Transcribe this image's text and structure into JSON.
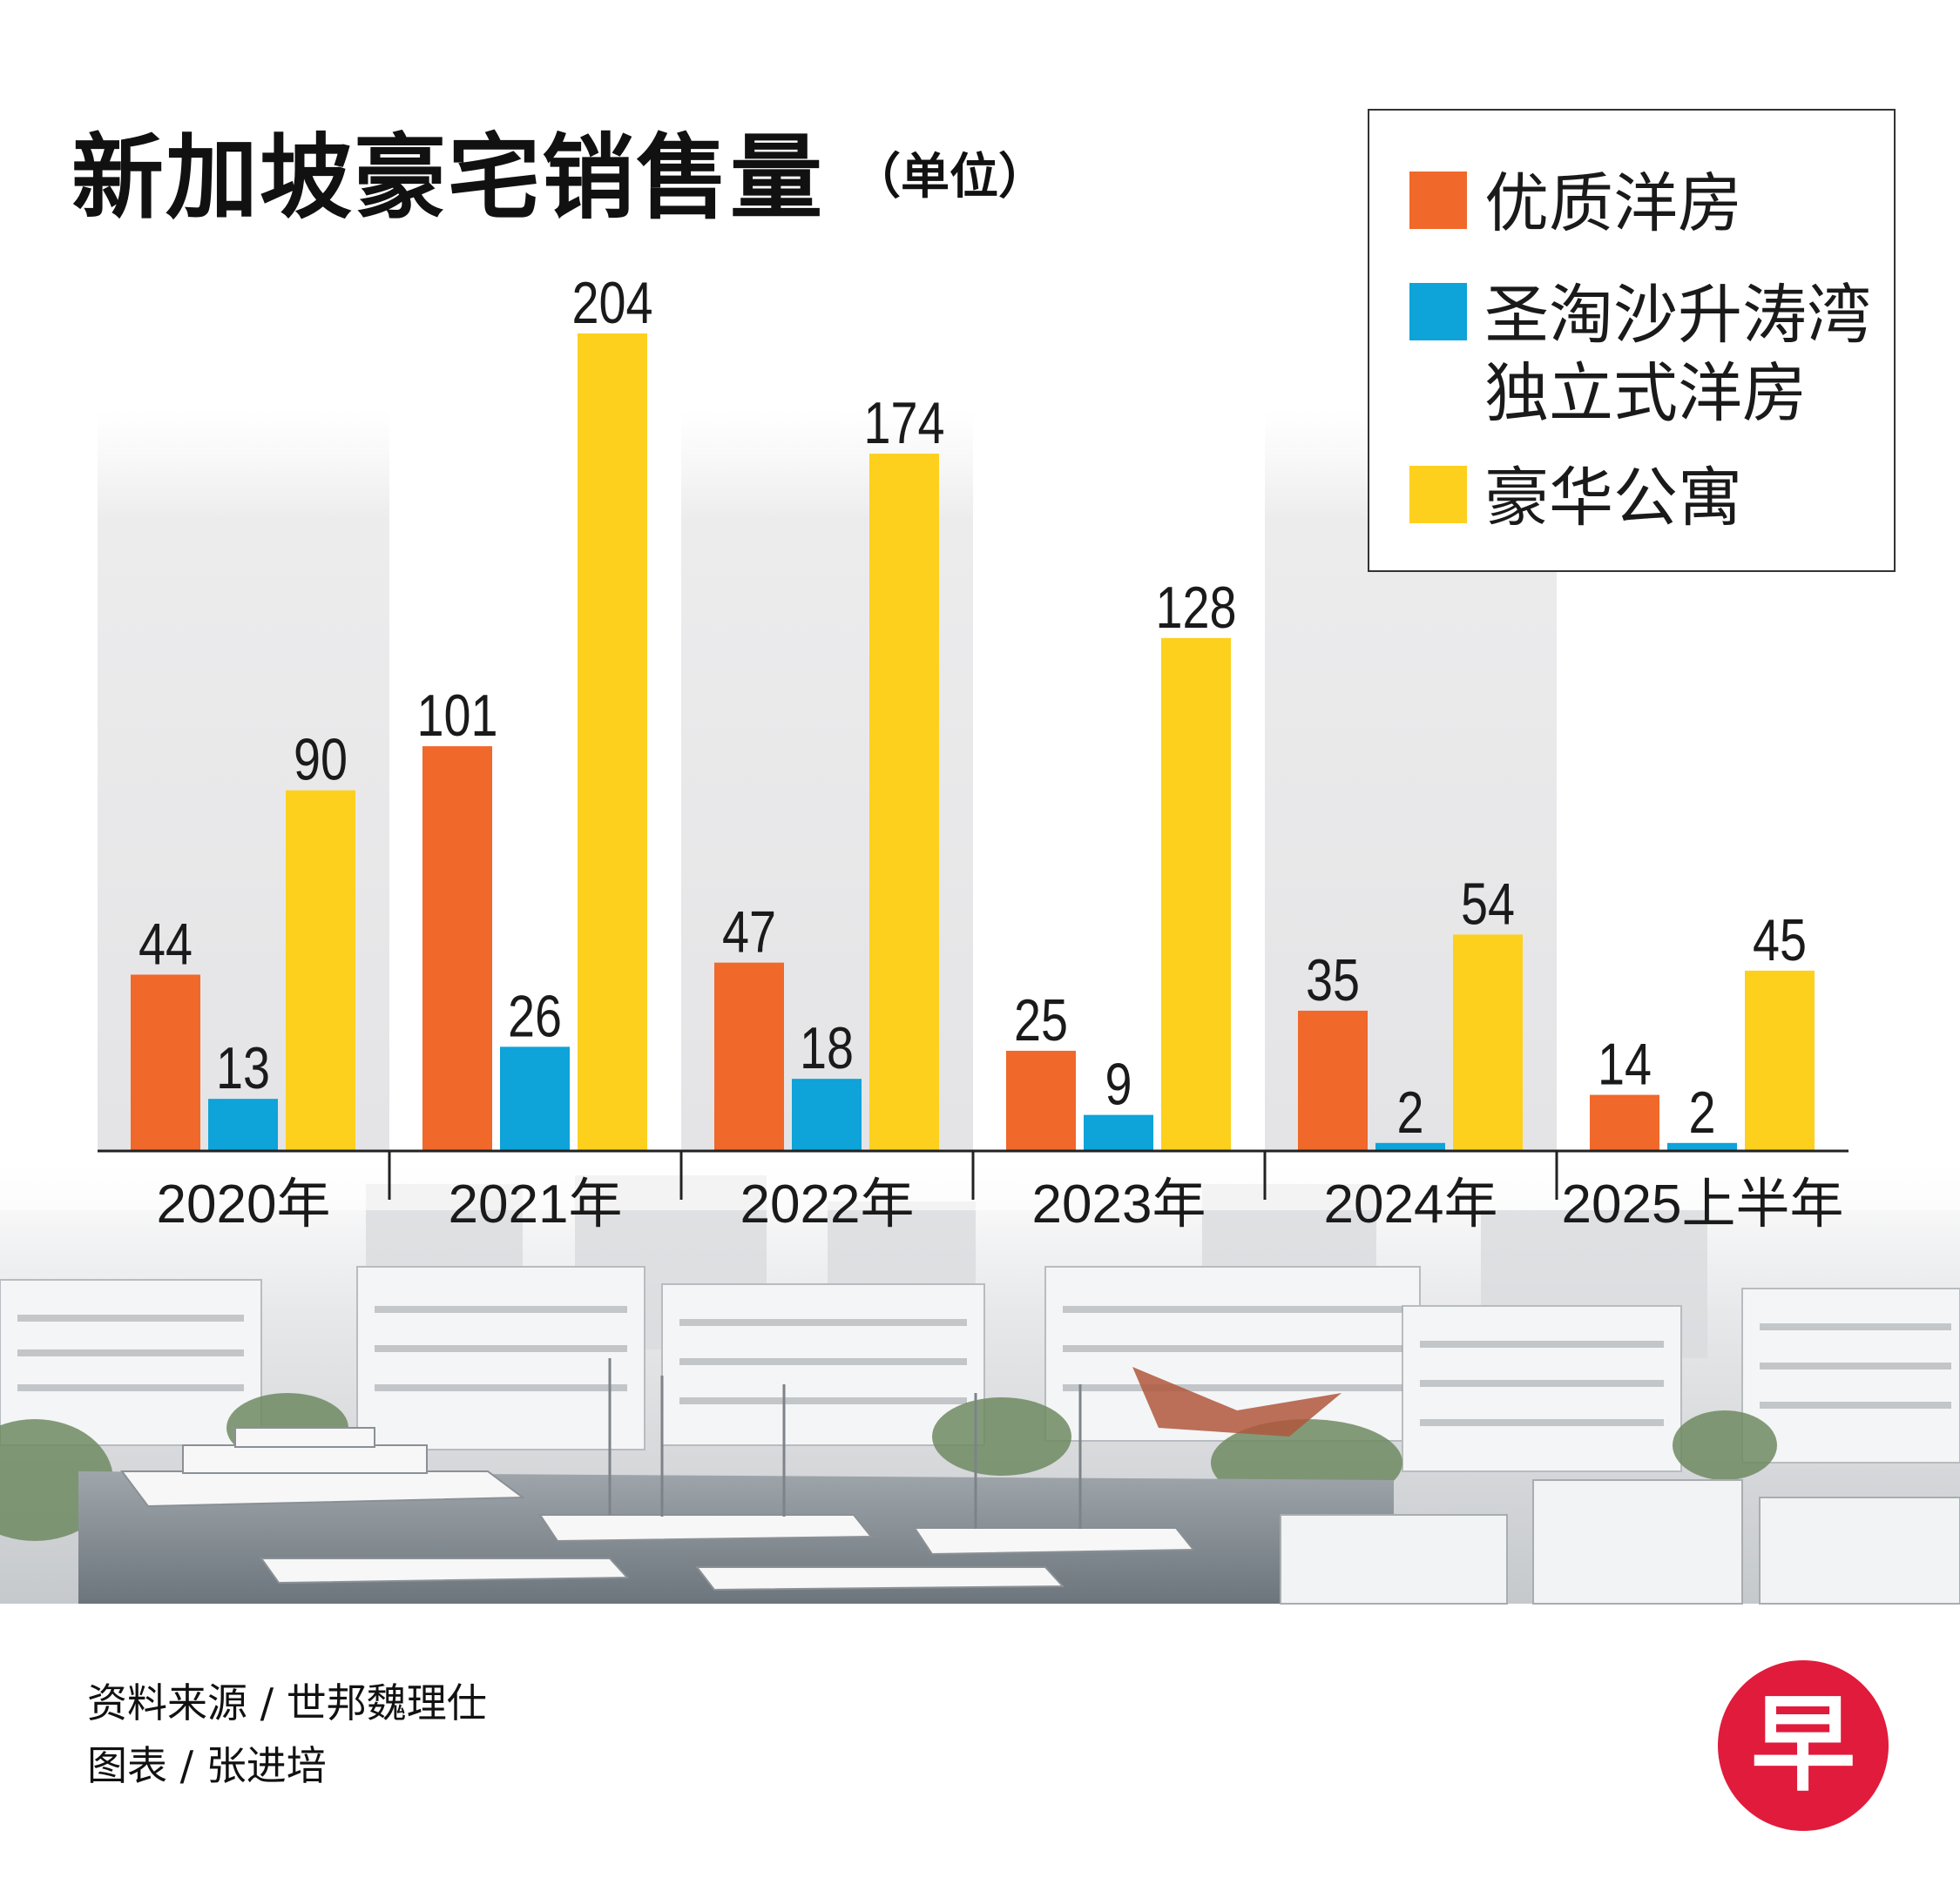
{
  "title": "新加坡豪宅销售量",
  "unit_label": "（单位）",
  "source": "资料来源 / 世邦魏理仕",
  "chart_by": "图表 / 张进培",
  "logo_text": "早",
  "colors": {
    "orange": "#f0682a",
    "blue": "#0ea3d9",
    "yellow": "#fdd01e",
    "logo_red": "#e11b3c"
  },
  "chart_data": {
    "type": "bar",
    "title": "新加坡豪宅销售量",
    "unit": "（单位）",
    "categories": [
      "2020年",
      "2021年",
      "2022年",
      "2023年",
      "2024年",
      "2025上半年"
    ],
    "series": [
      {
        "name": "优质洋房",
        "color": "#f0682a",
        "values": [
          44,
          101,
          47,
          25,
          35,
          14
        ]
      },
      {
        "name": "圣淘沙升涛湾独立式洋房",
        "color": "#0ea3d9",
        "values": [
          13,
          26,
          18,
          9,
          2,
          2
        ]
      },
      {
        "name": "豪华公寓",
        "color": "#fdd01e",
        "values": [
          90,
          204,
          174,
          128,
          54,
          45
        ]
      }
    ],
    "legend_lines": [
      [
        "优质洋房"
      ],
      [
        "圣淘沙升涛湾",
        "独立式洋房"
      ],
      [
        "豪华公寓"
      ]
    ],
    "ylim": [
      0,
      204
    ],
    "data_labels": true,
    "grid": false,
    "legend_position": "top-right"
  }
}
